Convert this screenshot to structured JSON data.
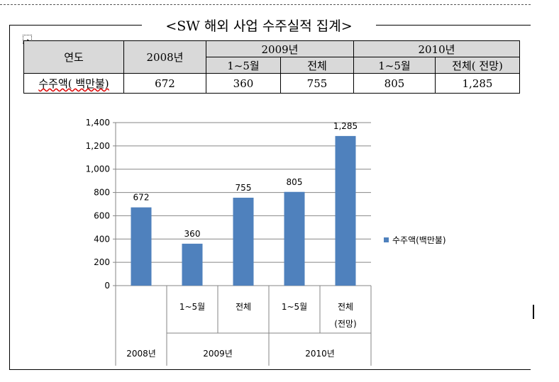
{
  "title": "<SW 해외 사업 수주실적 집계>",
  "table": {
    "header_year": "연도",
    "col_2008": "2008년",
    "col_2009": "2009년",
    "col_2010": "2010년",
    "sub_2009_1": "1~5월",
    "sub_2009_2": "전체",
    "sub_2010_1": "1~5월",
    "sub_2010_2": "전체( 전망)",
    "row_label": "수주액( 백만불)",
    "values": [
      "672",
      "360",
      "755",
      "805",
      "1,285"
    ]
  },
  "chart_data": {
    "type": "bar",
    "categories": [
      {
        "label": "",
        "label2": "",
        "group": "2008년"
      },
      {
        "label": "1~5월",
        "label2": "",
        "group": "2009년"
      },
      {
        "label": "전체",
        "label2": "",
        "group": "2009년"
      },
      {
        "label": "1~5월",
        "label2": "",
        "group": "2010년"
      },
      {
        "label": "전체",
        "label2": "(전망)",
        "group": "2010년"
      }
    ],
    "groups": [
      {
        "label": "2008년",
        "span": 1
      },
      {
        "label": "2009년",
        "span": 2
      },
      {
        "label": "2010년",
        "span": 2
      }
    ],
    "series": [
      {
        "name": "수주액(백만불)",
        "values": [
          672,
          360,
          755,
          805,
          1285
        ],
        "color": "#4f81bd"
      }
    ],
    "data_labels": [
      "672",
      "360",
      "755",
      "805",
      "1,285"
    ],
    "ylim": [
      0,
      1400
    ],
    "yticks": [
      0,
      200,
      400,
      600,
      800,
      1000,
      1200,
      1400
    ],
    "ytick_labels": [
      "0",
      "200",
      "400",
      "600",
      "800",
      "1,000",
      "1,200",
      "1,400"
    ],
    "grid": true,
    "legend": "right"
  }
}
